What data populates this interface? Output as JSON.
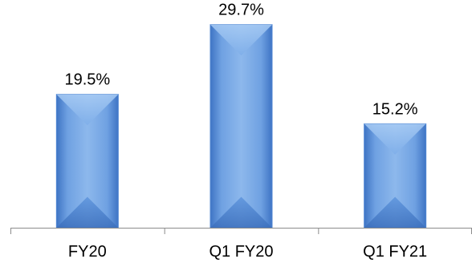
{
  "chart_data": {
    "type": "bar",
    "categories": [
      "FY20",
      "Q1 FY20",
      "Q1 FY21"
    ],
    "values": [
      19.5,
      29.7,
      15.2
    ],
    "data_labels": [
      "19.5%",
      "29.7%",
      "15.2%"
    ],
    "ylim": [
      0,
      33.3
    ],
    "grid": false,
    "legend": "none",
    "colors": {
      "bar_light": "#8DB8EC",
      "bar_mid": "#5B93DC",
      "bar_dark": "#3E74C4",
      "axis": "#8C8C8C"
    }
  }
}
